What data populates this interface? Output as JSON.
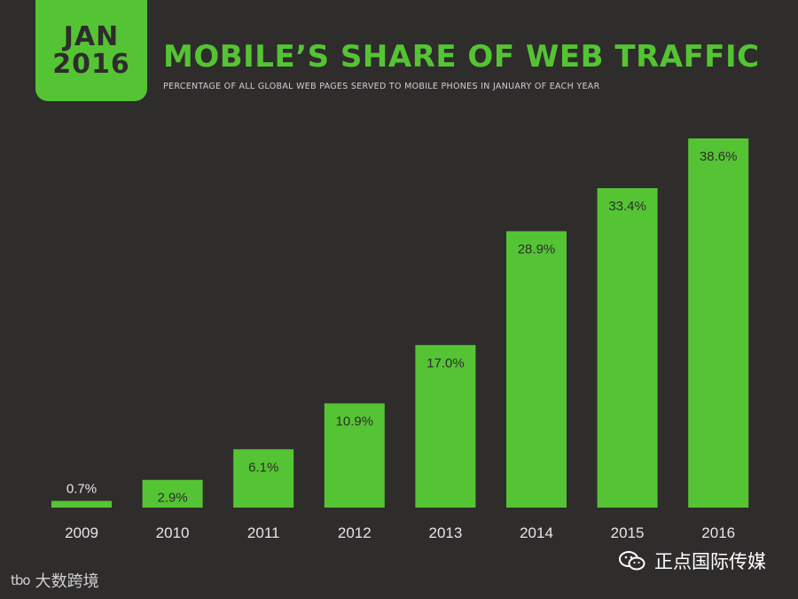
{
  "badge": {
    "line1": "JAN",
    "line2": "2016"
  },
  "chart_data": {
    "type": "bar",
    "title": "MOBILE’S SHARE OF WEB TRAFFIC",
    "subtitle": "PERCENTAGE OF ALL GLOBAL WEB PAGES SERVED TO MOBILE PHONES IN JANUARY OF EACH YEAR",
    "categories": [
      "2009",
      "2010",
      "2011",
      "2012",
      "2013",
      "2014",
      "2015",
      "2016"
    ],
    "values": [
      0.7,
      2.9,
      6.1,
      10.9,
      17.0,
      28.9,
      33.4,
      38.6
    ],
    "value_labels": [
      "0.7%",
      "2.9%",
      "6.1%",
      "10.9%",
      "17.0%",
      "28.9%",
      "33.4%",
      "38.6%"
    ],
    "ylim": [
      0,
      40
    ],
    "grid": false,
    "bar_color": "#55c434",
    "background": "#2f2c2c"
  },
  "watermarks": {
    "left_logo": "tbo",
    "left_text": "大数跨境",
    "right_text": "正点国际传媒",
    "right_icon": "wechat-icon"
  }
}
